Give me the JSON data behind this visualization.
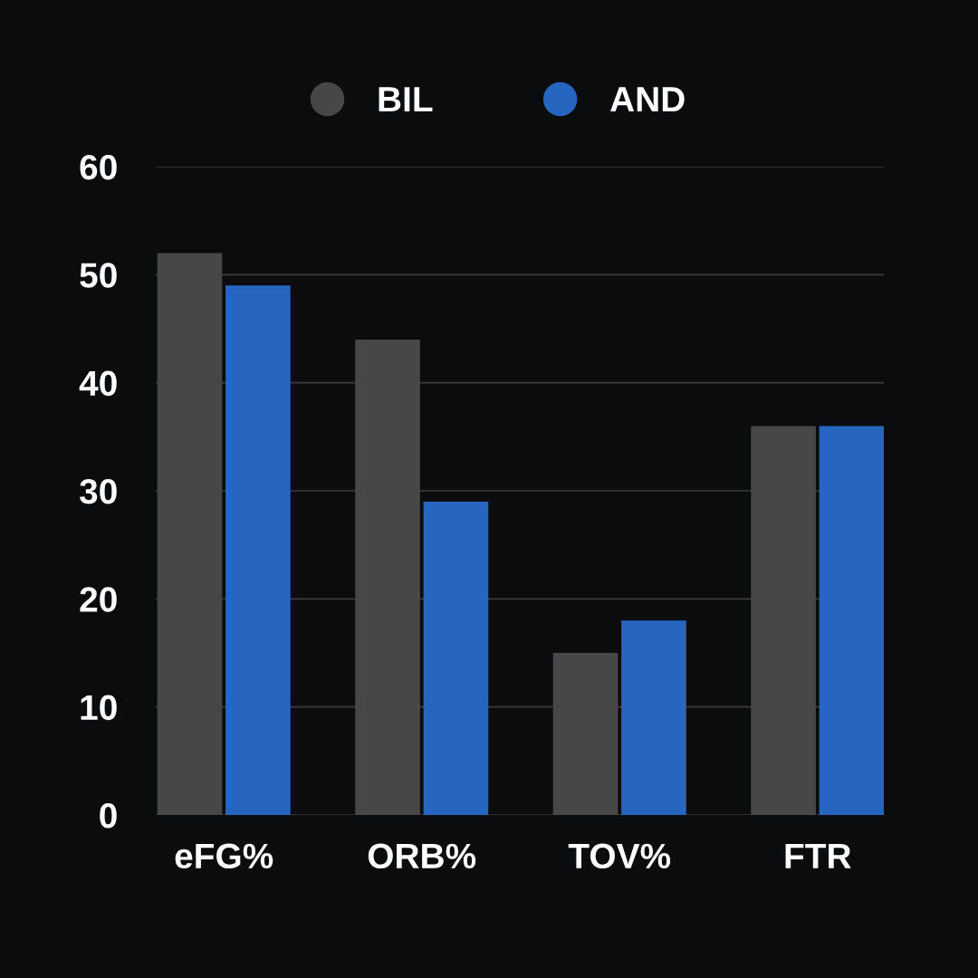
{
  "chart_data": {
    "type": "bar",
    "categories": [
      "eFG%",
      "ORB%",
      "TOV%",
      "FTR"
    ],
    "series": [
      {
        "name": "BIL",
        "color": "#474747",
        "values": [
          52,
          44,
          15,
          36
        ]
      },
      {
        "name": "AND",
        "color": "#2766c0",
        "values": [
          49,
          29,
          18,
          36
        ]
      }
    ],
    "ylim": [
      0,
      60
    ],
    "yticks": [
      0,
      10,
      20,
      30,
      40,
      50,
      60
    ],
    "grid": "y",
    "legend": "top"
  }
}
